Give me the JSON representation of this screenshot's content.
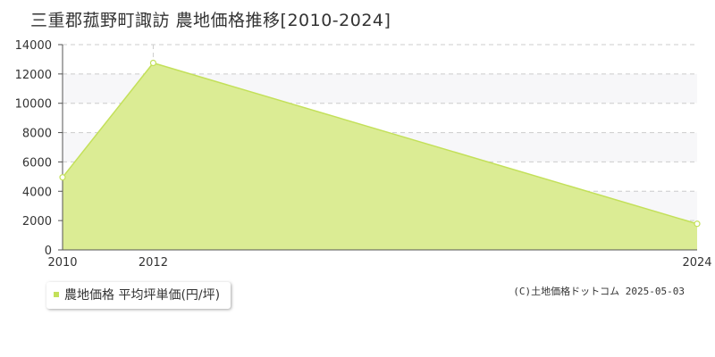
{
  "title": "三重郡菰野町諏訪 農地価格推移[2010-2024]",
  "legend": {
    "label": "農地価格 平均坪単価(円/坪)"
  },
  "copyright": "(C)土地価格ドットコム 2025-05-03",
  "colors": {
    "fill": "#dbec94",
    "line": "#c3e05a",
    "marker_fill": "#ffffff",
    "grid": "#cccccc",
    "band": "#f7f7f9",
    "axis": "#555555"
  },
  "chart_data": {
    "type": "area",
    "title": "三重郡菰野町諏訪 農地価格推移[2010-2024]",
    "xlabel": "",
    "ylabel": "",
    "xlim": [
      2010,
      2024
    ],
    "ylim": [
      0,
      14000
    ],
    "x_ticks": [
      "2010",
      "2012",
      "2024"
    ],
    "y_ticks": [
      "0",
      "2000",
      "4000",
      "6000",
      "8000",
      "10000",
      "12000",
      "14000"
    ],
    "grid": true,
    "legend_position": "bottom-left",
    "series": [
      {
        "name": "農地価格 平均坪単価(円/坪)",
        "x": [
          2010,
          2012,
          2024
        ],
        "y": [
          4950,
          12750,
          1780
        ]
      }
    ]
  }
}
